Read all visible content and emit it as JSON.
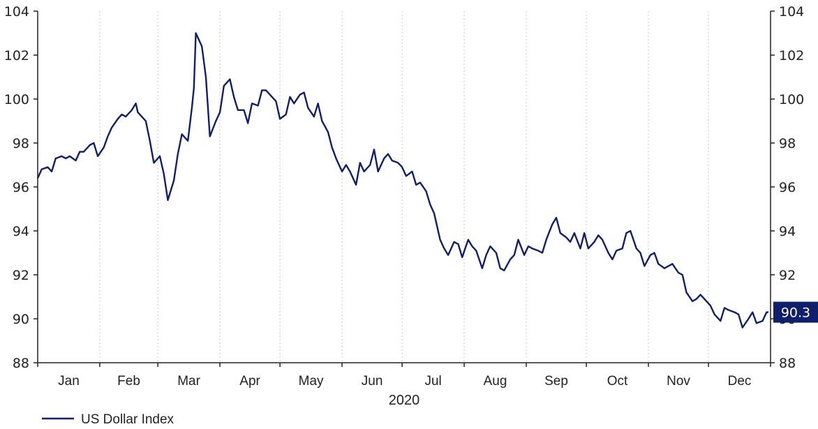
{
  "chart_data": {
    "type": "line",
    "title": "",
    "xlabel": "2020",
    "ylabel": "",
    "ylim": [
      88,
      104
    ],
    "yticks": [
      88,
      90,
      92,
      94,
      96,
      98,
      100,
      102,
      104
    ],
    "months": [
      "Jan",
      "Feb",
      "Mar",
      "Apr",
      "May",
      "Jun",
      "Jul",
      "Aug",
      "Sep",
      "Oct",
      "Nov",
      "Dec"
    ],
    "grid": "vertical dotted at month boundaries",
    "legend_position": "bottom-left",
    "last_value_label": "90.3",
    "line_color": "#0f1f6b",
    "series": [
      {
        "name": "US Dollar Index",
        "x": [
          "2020-01-01",
          "2020-01-03",
          "2020-01-06",
          "2020-01-08",
          "2020-01-10",
          "2020-01-13",
          "2020-01-15",
          "2020-01-17",
          "2020-01-20",
          "2020-01-22",
          "2020-01-24",
          "2020-01-27",
          "2020-01-29",
          "2020-01-31",
          "2020-02-03",
          "2020-02-05",
          "2020-02-07",
          "2020-02-10",
          "2020-02-12",
          "2020-02-14",
          "2020-02-17",
          "2020-02-19",
          "2020-02-20",
          "2020-02-21",
          "2020-02-24",
          "2020-02-26",
          "2020-02-28",
          "2020-03-02",
          "2020-03-04",
          "2020-03-06",
          "2020-03-09",
          "2020-03-11",
          "2020-03-13",
          "2020-03-16",
          "2020-03-18",
          "2020-03-19",
          "2020-03-20",
          "2020-03-23",
          "2020-03-25",
          "2020-03-27",
          "2020-03-30",
          "2020-04-01",
          "2020-04-03",
          "2020-04-06",
          "2020-04-08",
          "2020-04-10",
          "2020-04-13",
          "2020-04-15",
          "2020-04-17",
          "2020-04-20",
          "2020-04-22",
          "2020-04-24",
          "2020-04-27",
          "2020-04-29",
          "2020-05-01",
          "2020-05-04",
          "2020-05-06",
          "2020-05-08",
          "2020-05-11",
          "2020-05-13",
          "2020-05-15",
          "2020-05-18",
          "2020-05-20",
          "2020-05-22",
          "2020-05-25",
          "2020-05-27",
          "2020-05-29",
          "2020-06-01",
          "2020-06-03",
          "2020-06-05",
          "2020-06-08",
          "2020-06-10",
          "2020-06-12",
          "2020-06-15",
          "2020-06-17",
          "2020-06-19",
          "2020-06-22",
          "2020-06-24",
          "2020-06-26",
          "2020-06-29",
          "2020-07-01",
          "2020-07-03",
          "2020-07-06",
          "2020-07-08",
          "2020-07-10",
          "2020-07-13",
          "2020-07-15",
          "2020-07-17",
          "2020-07-20",
          "2020-07-22",
          "2020-07-24",
          "2020-07-27",
          "2020-07-29",
          "2020-07-31",
          "2020-08-03",
          "2020-08-05",
          "2020-08-07",
          "2020-08-10",
          "2020-08-12",
          "2020-08-14",
          "2020-08-17",
          "2020-08-19",
          "2020-08-21",
          "2020-08-24",
          "2020-08-26",
          "2020-08-28",
          "2020-08-31",
          "2020-09-02",
          "2020-09-04",
          "2020-09-07",
          "2020-09-09",
          "2020-09-11",
          "2020-09-14",
          "2020-09-16",
          "2020-09-18",
          "2020-09-21",
          "2020-09-23",
          "2020-09-25",
          "2020-09-28",
          "2020-09-30",
          "2020-10-02",
          "2020-10-05",
          "2020-10-07",
          "2020-10-09",
          "2020-10-12",
          "2020-10-14",
          "2020-10-16",
          "2020-10-19",
          "2020-10-21",
          "2020-10-23",
          "2020-10-26",
          "2020-10-28",
          "2020-10-30",
          "2020-11-02",
          "2020-11-04",
          "2020-11-06",
          "2020-11-09",
          "2020-11-11",
          "2020-11-13",
          "2020-11-16",
          "2020-11-18",
          "2020-11-20",
          "2020-11-23",
          "2020-11-25",
          "2020-11-27",
          "2020-11-30",
          "2020-12-02",
          "2020-12-04",
          "2020-12-07",
          "2020-12-09",
          "2020-12-11",
          "2020-12-14",
          "2020-12-16",
          "2020-12-18",
          "2020-12-21",
          "2020-12-23",
          "2020-12-25",
          "2020-12-28",
          "2020-12-30",
          "2020-12-31"
        ],
        "values": [
          96.4,
          96.8,
          96.9,
          96.7,
          97.3,
          97.4,
          97.3,
          97.4,
          97.2,
          97.6,
          97.6,
          97.9,
          98.0,
          97.4,
          97.8,
          98.3,
          98.7,
          99.1,
          99.3,
          99.2,
          99.5,
          99.8,
          99.4,
          99.3,
          99.0,
          98.1,
          97.1,
          97.4,
          96.6,
          95.4,
          96.3,
          97.5,
          98.4,
          98.1,
          99.6,
          100.5,
          103.0,
          102.4,
          101.0,
          98.3,
          99.0,
          99.4,
          100.6,
          100.9,
          100.1,
          99.5,
          99.5,
          98.9,
          99.8,
          99.7,
          100.4,
          100.4,
          100.1,
          99.9,
          99.1,
          99.3,
          100.1,
          99.8,
          100.2,
          100.3,
          99.6,
          99.2,
          99.8,
          99.0,
          98.5,
          97.8,
          97.3,
          96.7,
          97.0,
          96.7,
          96.1,
          97.1,
          96.7,
          97.0,
          97.7,
          96.7,
          97.3,
          97.5,
          97.2,
          97.1,
          96.9,
          96.5,
          96.7,
          96.1,
          96.2,
          95.8,
          95.2,
          94.8,
          93.6,
          93.2,
          92.9,
          93.5,
          93.4,
          92.8,
          93.6,
          93.3,
          93.1,
          92.3,
          92.9,
          93.3,
          93.0,
          92.3,
          92.2,
          92.7,
          92.9,
          93.6,
          92.9,
          93.3,
          93.2,
          93.1,
          93.0,
          93.6,
          94.3,
          94.6,
          93.9,
          93.7,
          93.5,
          93.9,
          93.2,
          93.9,
          93.2,
          93.5,
          93.8,
          93.6,
          93.0,
          92.7,
          93.1,
          93.2,
          93.9,
          94.0,
          93.2,
          93.0,
          92.4,
          92.9,
          93.0,
          92.5,
          92.3,
          92.4,
          92.5,
          92.1,
          92.0,
          91.2,
          90.8,
          90.9,
          91.1,
          90.8,
          90.6,
          90.2,
          89.9,
          90.5,
          90.4,
          90.3,
          90.2,
          89.6,
          90.0,
          90.3,
          89.8,
          89.9,
          90.3,
          90.3
        ]
      }
    ]
  }
}
